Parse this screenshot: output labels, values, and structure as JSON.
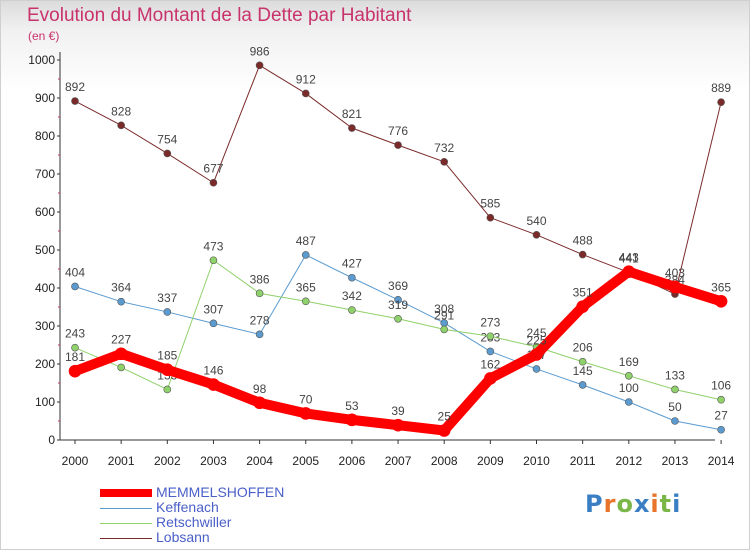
{
  "title": "Evolution du Montant de la Dette par Habitant",
  "subtitle": "(en €)",
  "logo": {
    "text": "Proxiti",
    "colors": [
      "#3a7fc4",
      "#e8742c",
      "#7ab648",
      "#3a7fc4",
      "#e8742c",
      "#7ab648",
      "#3a7fc4"
    ]
  },
  "chart_data": {
    "type": "line",
    "title": "Evolution du Montant de la Dette par Habitant",
    "ylabel": "(en €)",
    "x": [
      "2000",
      "2001",
      "2002",
      "2003",
      "2004",
      "2005",
      "2006",
      "2007",
      "2008",
      "2009",
      "2010",
      "2011",
      "2012",
      "2013",
      "2014"
    ],
    "yticks": [
      "0",
      "100",
      "200",
      "300",
      "400",
      "500",
      "600",
      "700",
      "800",
      "900",
      "1000"
    ],
    "ylim": [
      0,
      1000
    ],
    "grid": false,
    "legend": "bottom-left",
    "series": [
      {
        "name": "Lobsann",
        "color": "#7b2a2a",
        "width": 1,
        "values": [
          892,
          828,
          754,
          677,
          986,
          912,
          821,
          776,
          732,
          585,
          540,
          488,
          441,
          384,
          889
        ],
        "labels": [
          "892",
          "828",
          "754",
          "677",
          "986",
          "912",
          "821",
          "776",
          "732",
          "585",
          "540",
          "488",
          "441",
          "384",
          "889"
        ]
      },
      {
        "name": "Keffenach",
        "color": "#5b9bd0",
        "width": 1,
        "values": [
          404,
          364,
          337,
          307,
          278,
          487,
          427,
          369,
          308,
          233,
          187,
          145,
          100,
          50,
          27
        ],
        "labels": [
          "404",
          "364",
          "337",
          "307",
          "278",
          "487",
          "427",
          "369",
          "308",
          "233",
          "187",
          "145",
          "100",
          "50",
          "27"
        ]
      },
      {
        "name": "Retschwiller",
        "color": "#8fd16a",
        "width": 1,
        "values": [
          243,
          191,
          133,
          473,
          386,
          365,
          342,
          319,
          291,
          273,
          245,
          206,
          169,
          133,
          106
        ],
        "labels": [
          "243",
          "",
          "133",
          "473",
          "386",
          "365",
          "342",
          "319",
          "291",
          "273",
          "245",
          "206",
          "169",
          "133",
          "106"
        ]
      },
      {
        "name": "MEMMELSHOFFEN",
        "color": "#ff0000",
        "width": 10,
        "values": [
          181,
          227,
          185,
          146,
          98,
          70,
          53,
          39,
          25,
          162,
          225,
          351,
          443,
          403,
          365
        ],
        "labels": [
          "181",
          "227",
          "185",
          "146",
          "98",
          "70",
          "53",
          "39",
          "25",
          "162",
          "225",
          "351",
          "443",
          "403",
          "365"
        ]
      }
    ]
  },
  "legend_items": [
    {
      "name": "MEMMELSHOFFEN",
      "color": "#ff0000"
    },
    {
      "name": "Keffenach",
      "color": "#5b9bd0"
    },
    {
      "name": "Retschwiller",
      "color": "#8fd16a"
    },
    {
      "name": "Lobsann",
      "color": "#7b2a2a"
    }
  ]
}
